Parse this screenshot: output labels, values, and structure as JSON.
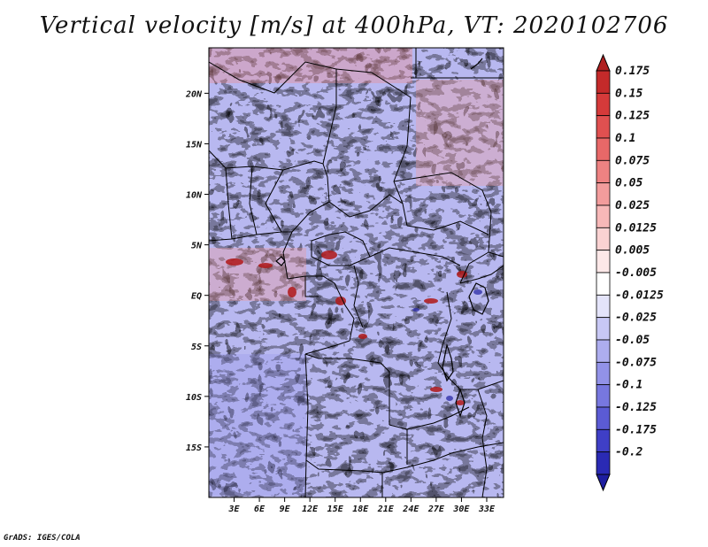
{
  "title": "Vertical velocity [m/s] at 400hPa, VT: 2020102706",
  "credit": "GrADS: IGES/COLA",
  "chart_data": {
    "type": "heatmap",
    "variable": "Vertical velocity",
    "units": "m/s",
    "level": "400hPa",
    "valid_time": "2020102706",
    "lon_range": [
      0,
      35
    ],
    "lat_range": [
      -20,
      24.5
    ],
    "x_ticks": [
      {
        "value": 3,
        "label": "3E"
      },
      {
        "value": 6,
        "label": "6E"
      },
      {
        "value": 9,
        "label": "9E"
      },
      {
        "value": 12,
        "label": "12E"
      },
      {
        "value": 15,
        "label": "15E"
      },
      {
        "value": 18,
        "label": "18E"
      },
      {
        "value": 21,
        "label": "21E"
      },
      {
        "value": 24,
        "label": "24E"
      },
      {
        "value": 27,
        "label": "27E"
      },
      {
        "value": 30,
        "label": "30E"
      },
      {
        "value": 33,
        "label": "33E"
      }
    ],
    "y_ticks": [
      {
        "value": 20,
        "label": "20N"
      },
      {
        "value": 15,
        "label": "15N"
      },
      {
        "value": 10,
        "label": "10N"
      },
      {
        "value": 5,
        "label": "5N"
      },
      {
        "value": 0,
        "label": "EQ"
      },
      {
        "value": -5,
        "label": "5S"
      },
      {
        "value": -10,
        "label": "10S"
      },
      {
        "value": -15,
        "label": "15S"
      }
    ],
    "colorbar": {
      "levels": [
        {
          "label": "0.175",
          "color": "#c42a2a"
        },
        {
          "label": "0.15",
          "color": "#d53a3a"
        },
        {
          "label": "0.125",
          "color": "#e05050"
        },
        {
          "label": "0.1",
          "color": "#e86868"
        },
        {
          "label": "0.075",
          "color": "#ee8282"
        },
        {
          "label": "0.05",
          "color": "#f39c9c"
        },
        {
          "label": "0.025",
          "color": "#f7b8b8"
        },
        {
          "label": "0.0125",
          "color": "#fad2d2"
        },
        {
          "label": "0.005",
          "color": "#fde8e8"
        },
        {
          "label": "-0.005",
          "color": "#ffffff"
        },
        {
          "label": "-0.0125",
          "color": "#e4e4fa"
        },
        {
          "label": "-0.025",
          "color": "#c8c8f5"
        },
        {
          "label": "-0.05",
          "color": "#adadef"
        },
        {
          "label": "-0.075",
          "color": "#9292e8"
        },
        {
          "label": "-0.1",
          "color": "#7777df"
        },
        {
          "label": "-0.125",
          "color": "#5b5bd4"
        },
        {
          "label": "-0.175",
          "color": "#3f3fc6"
        },
        {
          "label": "-0.2",
          "color": "#2a2ab4"
        }
      ],
      "top_cap_color": "#b02020",
      "bottom_cap_color": "#1e1ea0"
    }
  }
}
